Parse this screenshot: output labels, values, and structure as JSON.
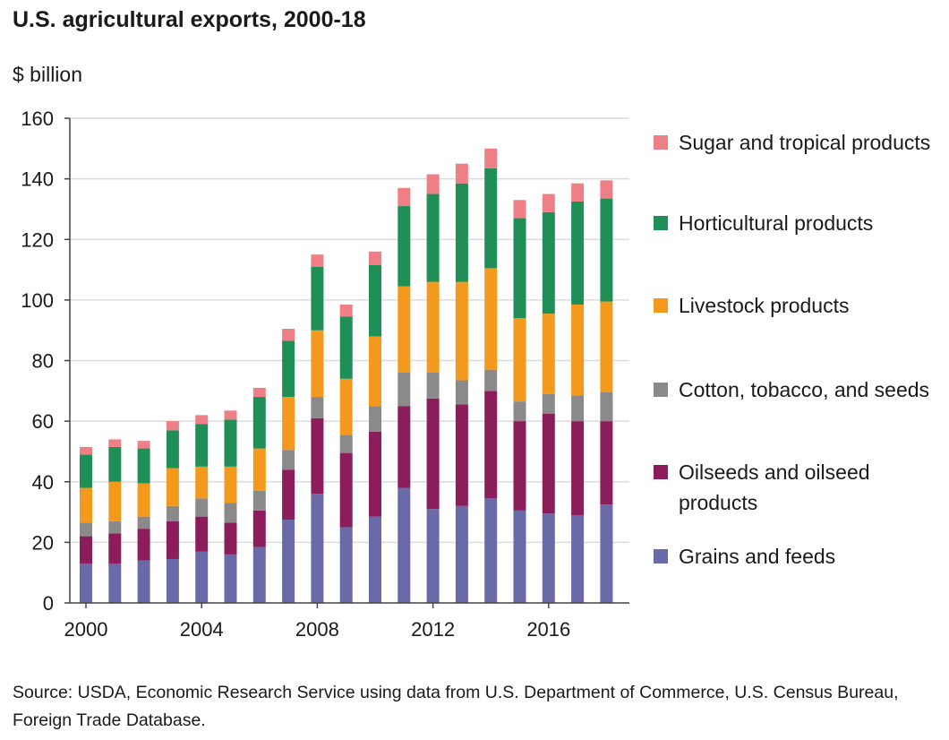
{
  "chart_data": {
    "type": "bar",
    "stacked": true,
    "title": "U.S. agricultural exports, 2000-18",
    "ylabel": "$ billion",
    "xlabel": "",
    "ylim": [
      0,
      160
    ],
    "yticks": [
      0,
      20,
      40,
      60,
      80,
      100,
      120,
      140,
      160
    ],
    "xtick_labels": [
      "2000",
      "2004",
      "2008",
      "2012",
      "2016"
    ],
    "grid": true,
    "legend_position": "right",
    "categories": [
      "2000",
      "2001",
      "2002",
      "2003",
      "2004",
      "2005",
      "2006",
      "2007",
      "2008",
      "2009",
      "2010",
      "2011",
      "2012",
      "2013",
      "2014",
      "2015",
      "2016",
      "2017",
      "2018"
    ],
    "series": [
      {
        "name": "Grains and feeds",
        "color": "#6a6aa8",
        "values": [
          13,
          13,
          14,
          14.5,
          17,
          16,
          18.5,
          27.5,
          36,
          25,
          28.5,
          38,
          31,
          32,
          34.5,
          30.5,
          29.5,
          29,
          32.5
        ]
      },
      {
        "name": "Oilseeds and oilseed products",
        "color": "#8b1d5a",
        "values": [
          9,
          10,
          10.5,
          12.5,
          11.5,
          10.5,
          12,
          16.5,
          25,
          24.5,
          28,
          27,
          36.5,
          33.5,
          35.5,
          29.5,
          33,
          31,
          27.5
        ]
      },
      {
        "name": "Cotton, tobacco, and seeds",
        "color": "#8a8a8a",
        "values": [
          4.5,
          4,
          4,
          5,
          6,
          6.5,
          6.5,
          6.5,
          7,
          6,
          8.5,
          11,
          8.5,
          8,
          7,
          6.5,
          6.5,
          8.5,
          9.5
        ]
      },
      {
        "name": "Livestock products",
        "color": "#f39a1e",
        "values": [
          11.5,
          13,
          11,
          12.5,
          10.5,
          12,
          14,
          17.5,
          22,
          18.5,
          23,
          28.5,
          30,
          32.5,
          33.5,
          27.5,
          26.5,
          30,
          30
        ]
      },
      {
        "name": "Horticultural products",
        "color": "#1f8f57",
        "values": [
          11,
          11.5,
          11.5,
          12.5,
          14,
          15.5,
          17,
          18.5,
          21,
          20.5,
          23.5,
          26.5,
          29,
          32.5,
          33,
          33,
          33.5,
          34,
          34
        ]
      },
      {
        "name": "Sugar and tropical products",
        "color": "#ef7f86",
        "values": [
          2.5,
          2.5,
          2.5,
          3,
          3,
          3,
          3,
          4,
          4,
          4,
          4.5,
          6,
          6.5,
          6.5,
          6.5,
          6,
          6,
          6,
          6
        ]
      }
    ],
    "legend_order": [
      "Sugar and tropical products",
      "Horticultural products",
      "Livestock products",
      "Cotton, tobacco, and seeds",
      "Oilseeds and oilseed products",
      "Grains and feeds"
    ],
    "legend_display": [
      "Sugar and tropical products",
      "Horticultural products",
      "Livestock products",
      "Cotton, tobacco, and seeds",
      "Oilseeds and oilseed products",
      "Grains and feeds"
    ],
    "source": "Source: USDA, Economic Research Service using data from U.S. Department of Commerce, U.S. Census Bureau, Foreign Trade Database."
  }
}
